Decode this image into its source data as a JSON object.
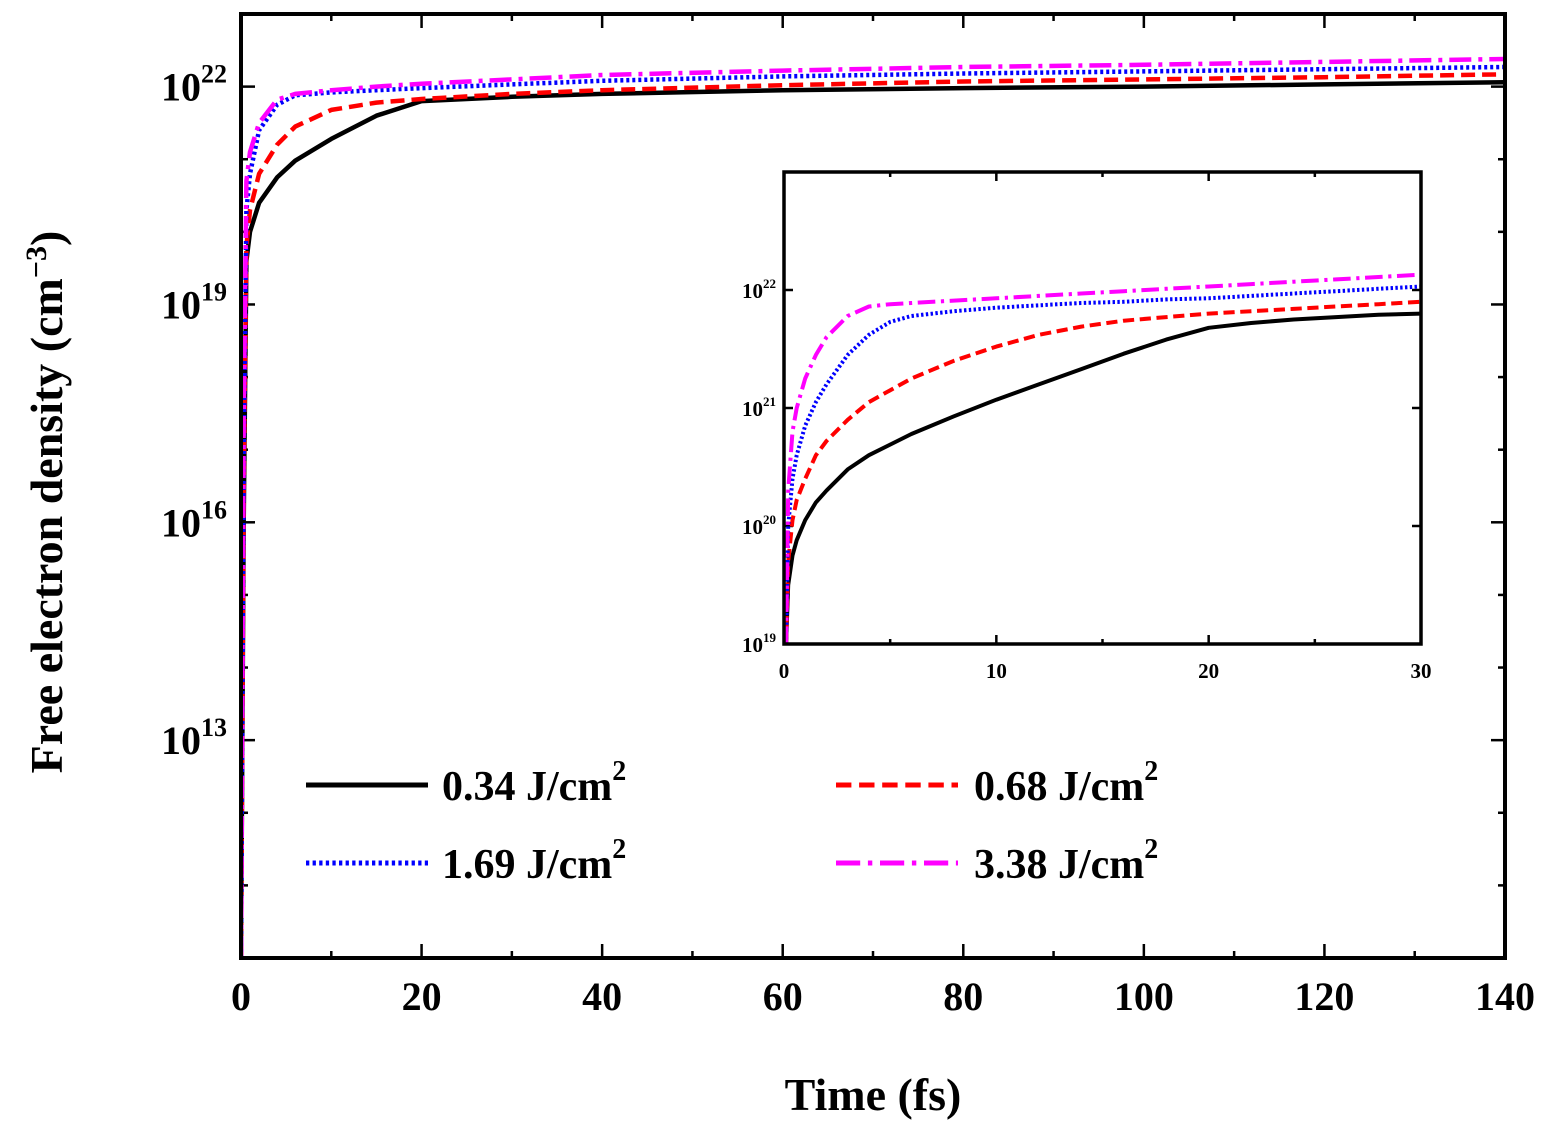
{
  "chart_data": [
    {
      "type": "line",
      "role": "main",
      "xlabel": "Time (fs)",
      "ylabel": "Free electron density (cm",
      "ylabel_sup": "−3",
      "ylabel_close": ")",
      "xlim": [
        0,
        140
      ],
      "ylim_log10": [
        10,
        23
      ],
      "yscale": "log",
      "x_ticks": [
        0,
        20,
        40,
        60,
        80,
        100,
        120,
        140
      ],
      "x_tick_labels": [
        "0",
        "20",
        "40",
        "60",
        "80",
        "100",
        "120",
        "140"
      ],
      "y_ticks_log10": [
        13,
        16,
        19,
        22
      ],
      "y_tick_base": "10",
      "y_tick_exponents": [
        "13",
        "16",
        "19",
        "22"
      ],
      "legend": {
        "placement": "bottom-left",
        "columns": 2,
        "entries": [
          {
            "label": "0.34 J/cm",
            "sup": "2"
          },
          {
            "label": "0.68 J/cm",
            "sup": "2"
          },
          {
            "label": "1.69 J/cm",
            "sup": "2"
          },
          {
            "label": "3.38 J/cm",
            "sup": "2"
          }
        ]
      },
      "series": [
        {
          "name": "0.34 J/cm2",
          "color": "#000000",
          "style": "solid",
          "x": [
            0,
            0.3,
            0.6,
            1,
            2,
            4,
            6,
            10,
            15,
            20,
            30,
            40,
            60,
            80,
            100,
            120,
            140
          ],
          "log10y": [
            10,
            16,
            19.6,
            20.0,
            20.4,
            20.75,
            20.98,
            21.28,
            21.6,
            21.8,
            21.86,
            21.9,
            21.95,
            21.98,
            22.0,
            22.03,
            22.06
          ]
        },
        {
          "name": "0.68 J/cm2",
          "color": "#ff0000",
          "style": "dashed",
          "x": [
            0,
            0.3,
            0.6,
            1,
            2,
            4,
            6,
            10,
            15,
            20,
            30,
            40,
            60,
            80,
            100,
            120,
            140
          ],
          "log10y": [
            10,
            16.5,
            19.8,
            20.3,
            20.8,
            21.2,
            21.45,
            21.68,
            21.78,
            21.83,
            21.9,
            21.95,
            22.02,
            22.07,
            22.1,
            22.13,
            22.17
          ]
        },
        {
          "name": "1.69 J/cm2",
          "color": "#0000ff",
          "style": "dotted",
          "x": [
            0,
            0.3,
            0.6,
            1,
            2,
            4,
            6,
            10,
            15,
            20,
            30,
            40,
            60,
            80,
            100,
            120,
            140
          ],
          "log10y": [
            10,
            17,
            20.3,
            20.8,
            21.4,
            21.75,
            21.88,
            21.92,
            21.95,
            21.98,
            22.03,
            22.08,
            22.14,
            22.18,
            22.21,
            22.24,
            22.27
          ]
        },
        {
          "name": "3.38 J/cm2",
          "color": "#ff00ff",
          "style": "dashdot",
          "x": [
            0,
            0.3,
            0.6,
            1,
            2,
            4,
            6,
            10,
            15,
            20,
            30,
            40,
            60,
            80,
            100,
            120,
            140
          ],
          "log10y": [
            10,
            17.5,
            20.7,
            21.1,
            21.5,
            21.82,
            21.9,
            21.95,
            22.0,
            22.04,
            22.1,
            22.16,
            22.22,
            22.27,
            22.3,
            22.34,
            22.38
          ]
        }
      ]
    },
    {
      "type": "line",
      "role": "inset",
      "xlim": [
        0,
        30
      ],
      "ylim_log10": [
        19,
        23
      ],
      "yscale": "log",
      "x_ticks": [
        0,
        10,
        20,
        30
      ],
      "x_tick_labels": [
        "0",
        "10",
        "20",
        "30"
      ],
      "y_ticks_log10": [
        19,
        20,
        21,
        22
      ],
      "y_tick_base": "10",
      "y_tick_exponents": [
        "19",
        "20",
        "21",
        "22"
      ],
      "series": [
        {
          "name": "0.34 J/cm2",
          "color": "#000000",
          "style": "solid",
          "x": [
            0.1,
            0.2,
            0.4,
            0.6,
            1,
            1.5,
            2,
            3,
            4,
            6,
            8,
            10,
            12,
            14,
            16,
            18,
            20,
            22,
            24,
            26,
            28,
            30
          ],
          "log10y": [
            19,
            19.5,
            19.75,
            19.88,
            20.05,
            20.2,
            20.3,
            20.48,
            20.6,
            20.78,
            20.93,
            21.07,
            21.2,
            21.33,
            21.46,
            21.58,
            21.68,
            21.72,
            21.75,
            21.77,
            21.79,
            21.8
          ]
        },
        {
          "name": "0.68 J/cm2",
          "color": "#ff0000",
          "style": "dashed",
          "x": [
            0.1,
            0.2,
            0.4,
            0.6,
            1,
            1.5,
            2,
            3,
            4,
            6,
            8,
            10,
            12,
            14,
            16,
            18,
            20,
            22,
            24,
            26,
            28,
            30
          ],
          "log10y": [
            19,
            19.7,
            20.05,
            20.22,
            20.4,
            20.6,
            20.72,
            20.9,
            21.05,
            21.25,
            21.4,
            21.52,
            21.62,
            21.69,
            21.74,
            21.77,
            21.8,
            21.82,
            21.84,
            21.86,
            21.88,
            21.9
          ]
        },
        {
          "name": "1.69 J/cm2",
          "color": "#0000ff",
          "style": "dotted",
          "x": [
            0.1,
            0.2,
            0.4,
            0.6,
            1,
            1.5,
            2,
            3,
            4,
            5,
            6,
            8,
            10,
            12,
            14,
            16,
            18,
            20,
            22,
            24,
            26,
            28,
            30
          ],
          "log10y": [
            19,
            20.0,
            20.4,
            20.6,
            20.85,
            21.05,
            21.2,
            21.45,
            21.62,
            21.73,
            21.78,
            21.82,
            21.85,
            21.87,
            21.89,
            21.9,
            21.92,
            21.93,
            21.95,
            21.97,
            21.99,
            22.01,
            22.03
          ]
        },
        {
          "name": "3.38 J/cm2",
          "color": "#ff00ff",
          "style": "dashdot",
          "x": [
            0.1,
            0.2,
            0.4,
            0.6,
            1,
            1.5,
            2,
            3,
            4,
            5,
            6,
            8,
            10,
            12,
            14,
            16,
            18,
            20,
            22,
            24,
            26,
            28,
            30
          ],
          "log10y": [
            19,
            20.3,
            20.8,
            21.0,
            21.25,
            21.45,
            21.6,
            21.78,
            21.86,
            21.88,
            21.89,
            21.91,
            21.93,
            21.95,
            21.97,
            21.99,
            22.01,
            22.03,
            22.05,
            22.07,
            22.09,
            22.11,
            22.13
          ]
        }
      ]
    }
  ]
}
